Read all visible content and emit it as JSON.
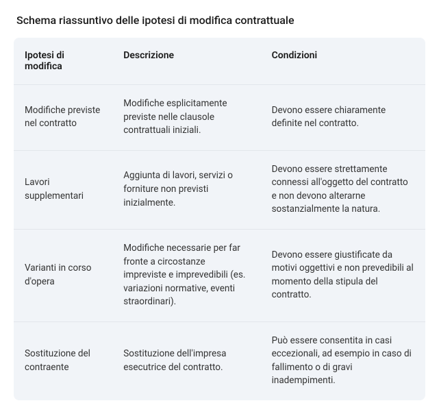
{
  "title": "Schema riassuntivo delle ipotesi di modifica contrattuale",
  "table": {
    "columns": [
      "Ipotesi di modifica",
      "Descrizione",
      "Condizioni"
    ],
    "rows": [
      {
        "ipotesi": "Modifiche previste nel contratto",
        "descrizione": "Modifiche esplicitamente previste nelle clausole contrattuali iniziali.",
        "condizioni": "Devono essere chiaramente definite nel contratto."
      },
      {
        "ipotesi": "Lavori supplementari",
        "descrizione": "Aggiunta di lavori, servizi o forniture non previsti inizialmente.",
        "condizioni": "Devono essere strettamente connessi all'oggetto del contratto e non devono alterarne sostanzialmente la natura."
      },
      {
        "ipotesi": "Varianti in corso d'opera",
        "descrizione": "Modifiche necessarie per far fronte a circostanze impreviste e imprevedibili (es. variazioni normative, eventi straordinari).",
        "condizioni": "Devono essere giustificate da motivi oggettivi e non prevedibili al momento della stipula del contratto."
      },
      {
        "ipotesi": "Sostituzione del contraente",
        "descrizione": "Sostituzione dell'impresa esecutrice del contratto.",
        "condizioni": "Può essere consentita in casi eccezionali, ad esempio in caso di fallimento o di gravi inadempimenti."
      }
    ]
  },
  "styling": {
    "background_color": "#ffffff",
    "table_background": "#f1f4f8",
    "border_color": "#e2e6eb",
    "text_color": "#1a1a1a",
    "body_text_color": "#333333",
    "title_fontsize": 16,
    "header_fontsize": 14,
    "cell_fontsize": 13.5,
    "border_radius": 8,
    "column_widths": [
      "24%",
      "36%",
      "40%"
    ]
  }
}
